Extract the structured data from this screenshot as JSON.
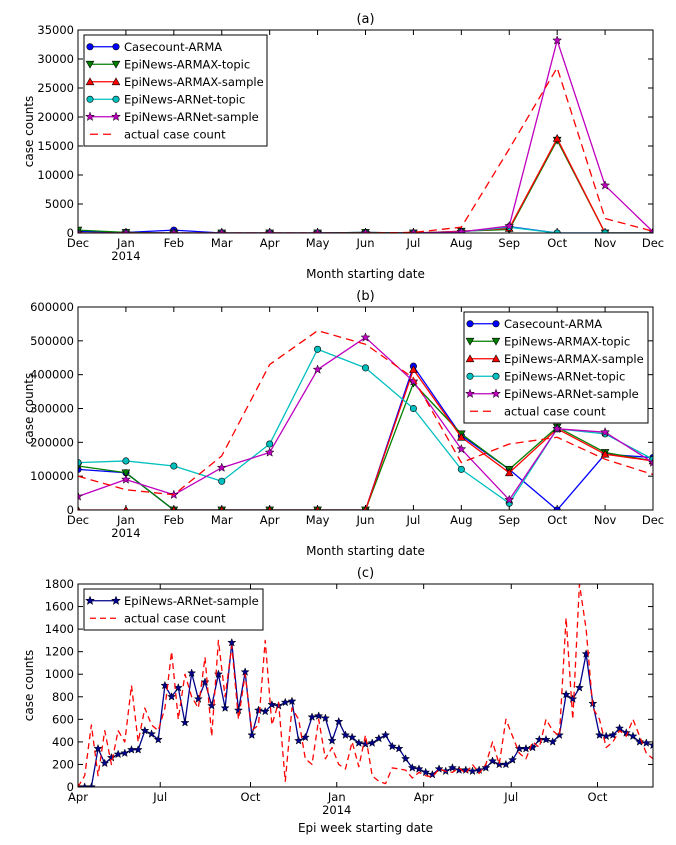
{
  "chart_data": [
    {
      "type": "line",
      "title": "(a)",
      "xlabel": "Month starting date",
      "ylabel": "case counts",
      "ylim": [
        0,
        35000
      ],
      "yticks": [
        0,
        5000,
        10000,
        15000,
        20000,
        25000,
        30000,
        35000
      ],
      "xticks": [
        {
          "label": "Dec",
          "sub": ""
        },
        {
          "label": "Jan",
          "sub": "2014"
        },
        {
          "label": "Feb",
          "sub": ""
        },
        {
          "label": "Mar",
          "sub": ""
        },
        {
          "label": "Apr",
          "sub": ""
        },
        {
          "label": "May",
          "sub": ""
        },
        {
          "label": "Jun",
          "sub": ""
        },
        {
          "label": "Jul",
          "sub": ""
        },
        {
          "label": "Aug",
          "sub": ""
        },
        {
          "label": "Sep",
          "sub": ""
        },
        {
          "label": "Oct",
          "sub": ""
        },
        {
          "label": "Nov",
          "sub": ""
        },
        {
          "label": "Dec",
          "sub": ""
        }
      ],
      "grid": false,
      "legend": "top-left",
      "series": [
        {
          "name": "Casecount-ARMA",
          "color": "#0000ff",
          "marker": "circle",
          "dash": "",
          "values": [
            300,
            100,
            500,
            0,
            0,
            0,
            100,
            0,
            200,
            1100,
            0,
            0,
            0
          ]
        },
        {
          "name": "EpiNews-ARMAX-topic",
          "color": "#007f00",
          "marker": "triangle-down",
          "dash": "",
          "values": [
            500,
            100,
            0,
            0,
            0,
            0,
            100,
            0,
            300,
            600,
            16000,
            0,
            0
          ]
        },
        {
          "name": "EpiNews-ARMAX-sample",
          "color": "#ff0000",
          "marker": "triangle-up",
          "dash": "",
          "values": [
            0,
            0,
            0,
            0,
            0,
            0,
            0,
            0,
            300,
            800,
            16300,
            0,
            0
          ]
        },
        {
          "name": "EpiNews-ARNet-topic",
          "color": "#00bfbf",
          "marker": "circle",
          "dash": "",
          "values": [
            0,
            0,
            0,
            0,
            0,
            0,
            0,
            0,
            200,
            1000,
            0,
            0,
            0
          ]
        },
        {
          "name": "EpiNews-ARNet-sample",
          "color": "#bf00bf",
          "marker": "star",
          "dash": "",
          "values": [
            0,
            0,
            0,
            0,
            0,
            0,
            0,
            0,
            200,
            1200,
            33200,
            8200,
            200
          ]
        },
        {
          "name": "actual case count",
          "color": "#ff0000",
          "marker": "none",
          "dash": "8,5",
          "values": [
            0,
            0,
            0,
            0,
            0,
            0,
            0,
            100,
            1000,
            14500,
            28500,
            2500,
            300
          ]
        }
      ]
    },
    {
      "type": "line",
      "title": "(b)",
      "xlabel": "Month starting date",
      "ylabel": "case counts",
      "ylim": [
        0,
        600000
      ],
      "yticks": [
        0,
        100000,
        200000,
        300000,
        400000,
        500000,
        600000
      ],
      "xticks": [
        {
          "label": "Dec",
          "sub": ""
        },
        {
          "label": "Jan",
          "sub": "2014"
        },
        {
          "label": "Feb",
          "sub": ""
        },
        {
          "label": "Mar",
          "sub": ""
        },
        {
          "label": "Apr",
          "sub": ""
        },
        {
          "label": "May",
          "sub": ""
        },
        {
          "label": "Jun",
          "sub": ""
        },
        {
          "label": "Jul",
          "sub": ""
        },
        {
          "label": "Aug",
          "sub": ""
        },
        {
          "label": "Sep",
          "sub": ""
        },
        {
          "label": "Oct",
          "sub": ""
        },
        {
          "label": "Nov",
          "sub": ""
        },
        {
          "label": "Dec",
          "sub": ""
        }
      ],
      "grid": false,
      "legend": "top-right",
      "series": [
        {
          "name": "Casecount-ARMA",
          "color": "#0000ff",
          "marker": "circle",
          "dash": "",
          "values": [
            120000,
            110000,
            0,
            0,
            0,
            0,
            0,
            425000,
            220000,
            120000,
            0,
            165000,
            155000
          ]
        },
        {
          "name": "EpiNews-ARMAX-topic",
          "color": "#007f00",
          "marker": "triangle-down",
          "dash": "",
          "values": [
            130000,
            110000,
            0,
            0,
            0,
            0,
            0,
            375000,
            225000,
            120000,
            245000,
            170000,
            145000
          ]
        },
        {
          "name": "EpiNews-ARMAX-sample",
          "color": "#ff0000",
          "marker": "triangle-up",
          "dash": "",
          "values": [
            0,
            0,
            0,
            0,
            0,
            0,
            0,
            415000,
            215000,
            110000,
            240000,
            165000,
            145000
          ]
        },
        {
          "name": "EpiNews-ARNet-topic",
          "color": "#00bfbf",
          "marker": "circle",
          "dash": "",
          "values": [
            140000,
            145000,
            130000,
            85000,
            195000,
            475000,
            420000,
            300000,
            120000,
            20000,
            240000,
            225000,
            150000
          ]
        },
        {
          "name": "EpiNews-ARNet-sample",
          "color": "#bf00bf",
          "marker": "star",
          "dash": "",
          "values": [
            40000,
            90000,
            45000,
            125000,
            170000,
            415000,
            510000,
            380000,
            180000,
            30000,
            240000,
            230000,
            140000
          ]
        },
        {
          "name": "actual case count",
          "color": "#ff0000",
          "marker": "none",
          "dash": "8,5",
          "values": [
            100000,
            60000,
            45000,
            160000,
            430000,
            530000,
            490000,
            390000,
            140000,
            195000,
            215000,
            150000,
            105000
          ]
        }
      ]
    },
    {
      "type": "line",
      "title": "(c)",
      "xlabel": "Epi week starting date",
      "ylabel": "case counts",
      "ylim": [
        0,
        1800
      ],
      "yticks": [
        0,
        200,
        400,
        600,
        800,
        1000,
        1200,
        1400,
        1600,
        1800
      ],
      "x_count": 87,
      "xticks": [
        {
          "label": "Apr",
          "sub": "",
          "week": 0
        },
        {
          "label": "Jul",
          "sub": "",
          "week": 12.3
        },
        {
          "label": "Oct",
          "sub": "",
          "week": 25.8
        },
        {
          "label": "Jan",
          "sub": "2014",
          "week": 38.7
        },
        {
          "label": "Apr",
          "sub": "",
          "week": 51.7
        },
        {
          "label": "Jul",
          "sub": "",
          "week": 64.8
        },
        {
          "label": "Oct",
          "sub": "",
          "week": 77.7
        }
      ],
      "grid": false,
      "legend": "top-left",
      "series": [
        {
          "name": "EpiNews-ARNet-sample",
          "color": "#00008b",
          "marker": "star",
          "dash": "",
          "values": [
            0,
            0,
            0,
            340,
            210,
            260,
            290,
            300,
            330,
            330,
            500,
            470,
            420,
            900,
            800,
            880,
            570,
            1010,
            780,
            930,
            720,
            1000,
            700,
            1280,
            680,
            1020,
            460,
            680,
            670,
            730,
            720,
            750,
            760,
            410,
            440,
            620,
            630,
            610,
            410,
            580,
            460,
            440,
            390,
            380,
            390,
            430,
            460,
            360,
            340,
            250,
            170,
            160,
            130,
            110,
            160,
            140,
            170,
            150,
            150,
            140,
            150,
            170,
            230,
            200,
            200,
            240,
            340,
            340,
            350,
            420,
            420,
            400,
            460,
            820,
            780,
            880,
            1180,
            740,
            460,
            450,
            460,
            520,
            480,
            450,
            400,
            390,
            370
          ]
        },
        {
          "name": "actual case count",
          "color": "#ff0000",
          "marker": "none",
          "dash": "6,4",
          "values": [
            0,
            100,
            550,
            100,
            500,
            200,
            500,
            400,
            900,
            400,
            700,
            550,
            500,
            700,
            1200,
            600,
            1000,
            800,
            700,
            1150,
            450,
            1300,
            800,
            1250,
            600,
            1000,
            500,
            550,
            1300,
            550,
            750,
            50,
            700,
            600,
            250,
            200,
            600,
            250,
            350,
            200,
            160,
            400,
            180,
            460,
            100,
            50,
            30,
            170,
            160,
            150,
            80,
            130,
            100,
            90,
            160,
            140,
            130,
            170,
            120,
            200,
            120,
            200,
            400,
            200,
            600,
            450,
            300,
            250,
            400,
            350,
            600,
            500,
            450,
            1500,
            600,
            1800,
            1400,
            700,
            600,
            350,
            400,
            500,
            450,
            600,
            450,
            300,
            250
          ]
        }
      ]
    }
  ]
}
